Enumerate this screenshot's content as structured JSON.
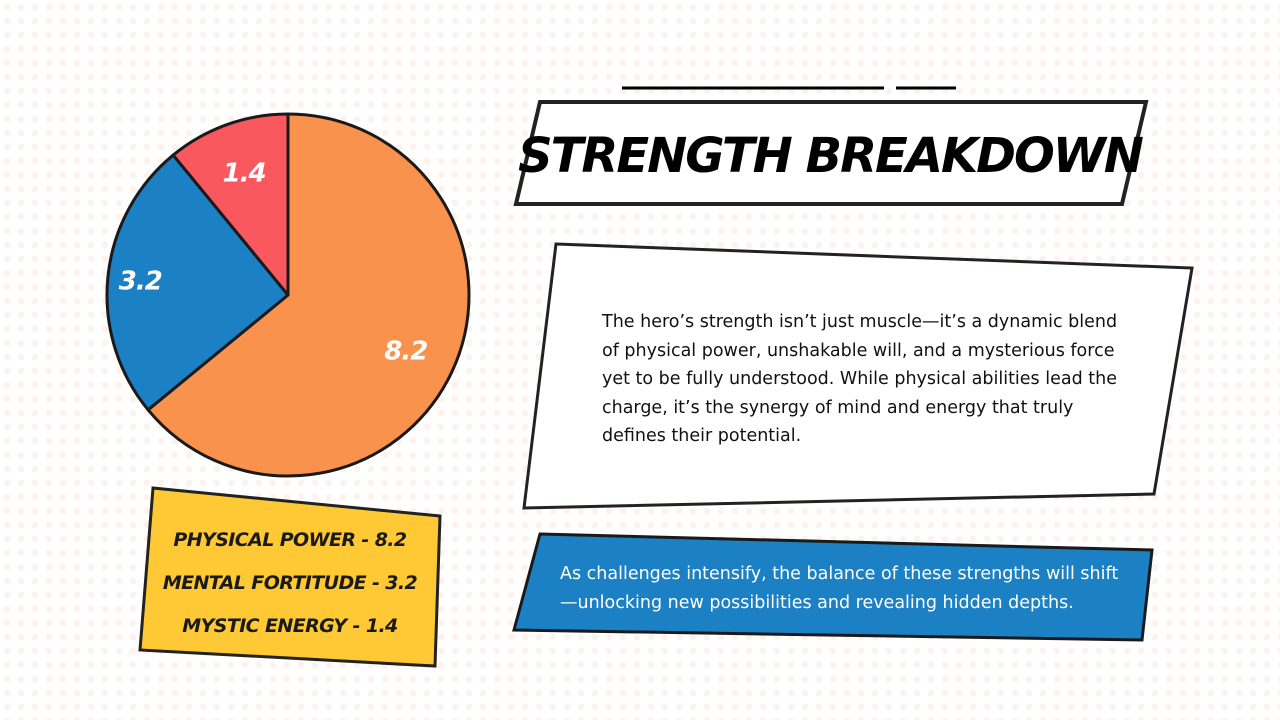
{
  "title": "STRENGTH BREAKDOWN",
  "description": "The hero’s strength isn’t just muscle—it’s a dynamic blend of physical power, unshakable will, and a mysterious force yet to be fully understood. While physical abilities lead the charge, it’s the synergy of mind and energy that truly defines their potential.",
  "callout": "As challenges intensify, the balance of these strengths will shift—unlocking new possibilities and revealing hidden depths.",
  "legend": [
    "PHYSICAL POWER - 8.2",
    "MENTAL FORTITUDE - 3.2",
    "MYSTIC ENERGY - 1.4"
  ],
  "colors": {
    "physical": "#f8924d",
    "mental": "#1b80c4",
    "mystic": "#f8585e",
    "legend_bg": "#fec935",
    "callout_bg": "#1b80c4"
  },
  "chart_data": {
    "type": "pie",
    "categories": [
      "Physical Power",
      "Mental Fortitude",
      "Mystic Energy"
    ],
    "values": [
      8.2,
      3.2,
      1.4
    ],
    "data_labels": [
      "8.2",
      "3.2",
      "1.4"
    ],
    "colors": [
      "#f8924d",
      "#1b80c4",
      "#f8585e"
    ],
    "start": "12 o'clock",
    "direction": "clockwise"
  }
}
